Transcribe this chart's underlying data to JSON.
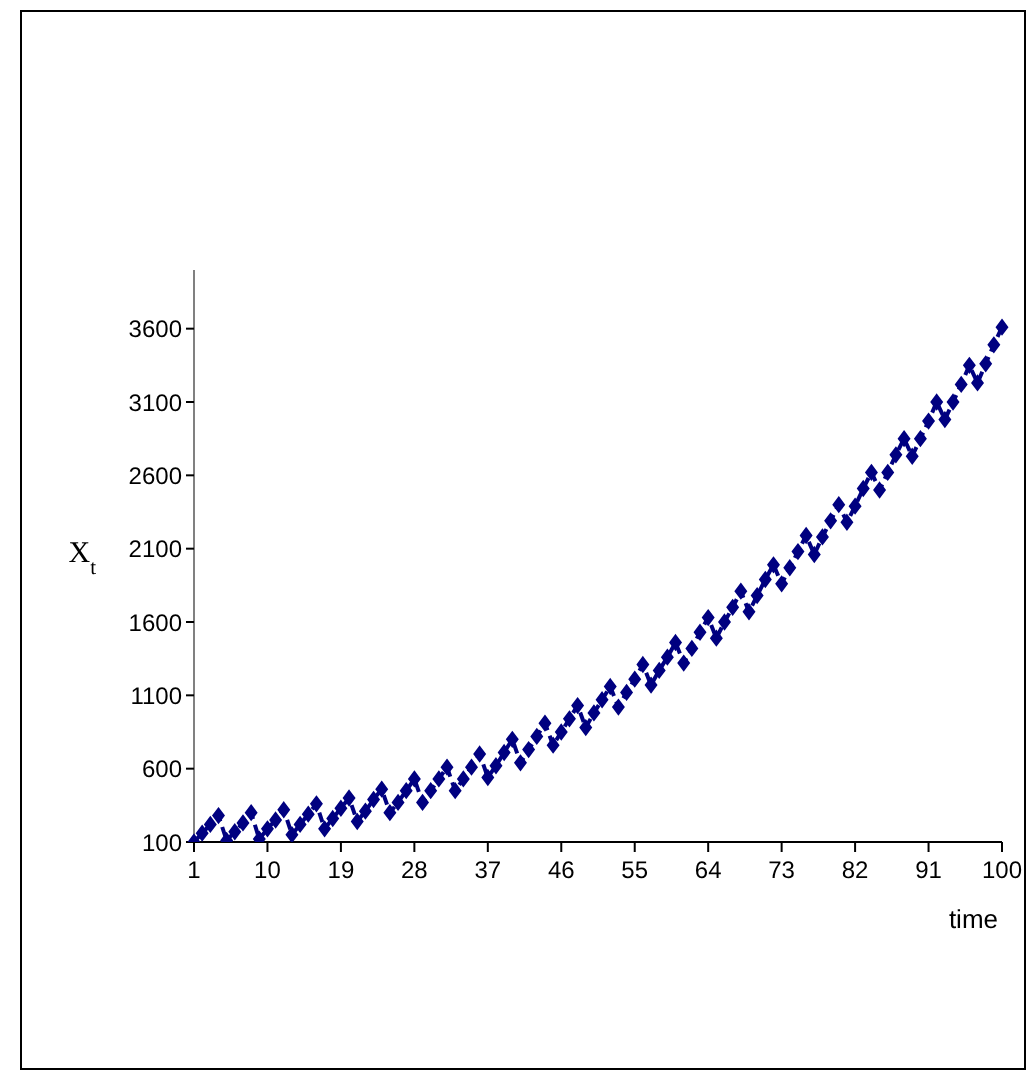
{
  "chart_data": {
    "type": "line",
    "xlabel": "time",
    "ylabel": "X$_{t}$",
    "categories": [
      "1",
      null,
      null,
      null,
      null,
      null,
      null,
      null,
      null,
      "10",
      null,
      null,
      null,
      null,
      null,
      null,
      null,
      null,
      "19",
      null,
      null,
      null,
      null,
      null,
      null,
      null,
      null,
      "28",
      null,
      null,
      null,
      null,
      null,
      null,
      null,
      null,
      "37",
      null,
      null,
      null,
      null,
      null,
      null,
      null,
      null,
      "46",
      null,
      null,
      null,
      null,
      null,
      null,
      null,
      null,
      "55",
      null,
      null,
      null,
      null,
      null,
      null,
      null,
      null,
      "64",
      null,
      null,
      null,
      null,
      null,
      null,
      null,
      null,
      "73",
      null,
      null,
      null,
      null,
      null,
      null,
      null,
      null,
      "82",
      null,
      null,
      null,
      null,
      null,
      null,
      null,
      null,
      "91",
      null,
      null,
      null,
      null,
      null,
      null,
      null,
      null,
      "100"
    ],
    "series": [
      {
        "color": "#000080",
        "values": [
          100,
          160,
          220,
          280,
          110,
          170,
          230,
          300,
          120,
          190,
          250,
          320,
          150,
          220,
          290,
          360,
          190,
          260,
          330,
          400,
          240,
          310,
          390,
          460,
          300,
          370,
          450,
          530,
          370,
          450,
          530,
          610,
          450,
          530,
          610,
          700,
          540,
          620,
          710,
          800,
          640,
          730,
          820,
          910,
          760,
          850,
          940,
          1030,
          880,
          980,
          1070,
          1160,
          1020,
          1120,
          1210,
          1310,
          1170,
          1270,
          1360,
          1460,
          1320,
          1420,
          1530,
          1630,
          1490,
          1600,
          1700,
          1810,
          1670,
          1780,
          1890,
          1990,
          1860,
          1970,
          2080,
          2190,
          2060,
          2180,
          2290,
          2400,
          2280,
          2390,
          2510,
          2620,
          2500,
          2620,
          2740,
          2850,
          2730,
          2850,
          2970,
          3100,
          2980,
          3100,
          3220,
          3350,
          3230,
          3360,
          3490,
          3610
        ]
      }
    ],
    "ylim": [
      100,
      4000
    ],
    "yticks": [
      100,
      600,
      1100,
      1600,
      2100,
      2600,
      3100,
      3600
    ],
    "grid": false,
    "legend": false,
    "marker": "diamond",
    "line_style": "dashed"
  }
}
